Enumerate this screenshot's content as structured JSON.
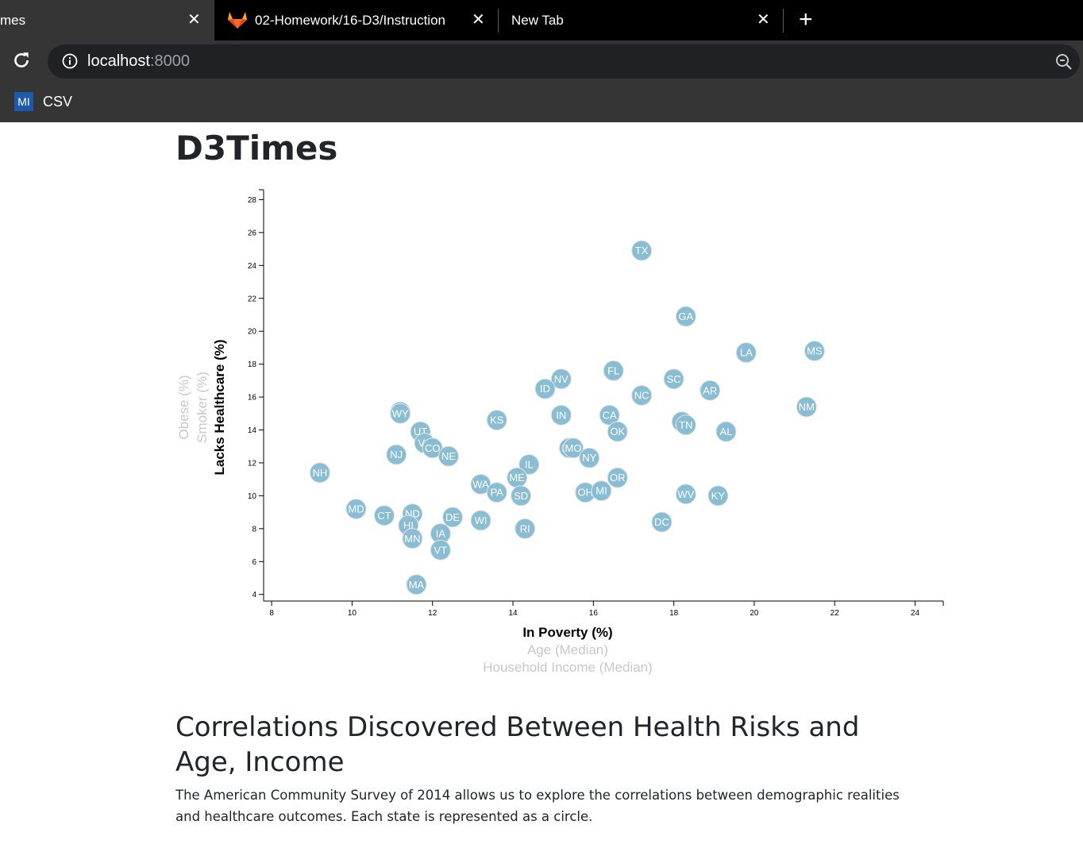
{
  "browser": {
    "tabs": [
      {
        "label": "mes",
        "active": true
      },
      {
        "label": "02-Homework/16-D3/Instruction",
        "active": false
      },
      {
        "label": "New Tab",
        "active": false
      }
    ],
    "new_tab_label": "+",
    "close_label": "✕",
    "url_host": "localhost",
    "url_port": ":8000",
    "bookmarks": [
      {
        "icon_text": "MI",
        "label": "CSV"
      }
    ]
  },
  "page": {
    "title": "D3Times",
    "heading": "Correlations Discovered Between Health Risks and Age, Income",
    "description": "The American Community Survey of 2014 allows us to explore the correlations between demographic realities and healthcare outcomes. Each state is represented as a circle."
  },
  "chart_data": {
    "type": "scatter",
    "x_labels": [
      {
        "text": "In Poverty (%)",
        "active": true
      },
      {
        "text": "Age (Median)",
        "active": false
      },
      {
        "text": "Household Income (Median)",
        "active": false
      }
    ],
    "y_labels": [
      {
        "text": "Lacks Healthcare (%)",
        "active": true
      },
      {
        "text": "Smoker (%)",
        "active": false
      },
      {
        "text": "Obese (%)",
        "active": false
      }
    ],
    "xlim": [
      7.8,
      24.7
    ],
    "ylim": [
      3.6,
      28.6
    ],
    "x_ticks": [
      8,
      10,
      12,
      14,
      16,
      18,
      20,
      22,
      24
    ],
    "y_ticks": [
      4,
      6,
      8,
      10,
      12,
      14,
      16,
      18,
      20,
      22,
      24,
      26,
      28
    ],
    "point_color": "#89bdd3",
    "points": [
      {
        "abbr": "TX",
        "x": 17.2,
        "y": 24.9
      },
      {
        "abbr": "GA",
        "x": 18.3,
        "y": 20.9
      },
      {
        "abbr": "LA",
        "x": 19.8,
        "y": 18.7
      },
      {
        "abbr": "MS",
        "x": 21.5,
        "y": 18.8
      },
      {
        "abbr": "FL",
        "x": 16.5,
        "y": 17.6
      },
      {
        "abbr": "NV",
        "x": 15.2,
        "y": 17.1
      },
      {
        "abbr": "SC",
        "x": 18.0,
        "y": 17.1
      },
      {
        "abbr": "ID",
        "x": 14.8,
        "y": 16.5
      },
      {
        "abbr": "AR",
        "x": 18.9,
        "y": 16.4
      },
      {
        "abbr": "NC",
        "x": 17.2,
        "y": 16.1
      },
      {
        "abbr": "NM",
        "x": 21.3,
        "y": 15.4
      },
      {
        "abbr": "AK",
        "x": 11.2,
        "y": 15.1
      },
      {
        "abbr": "WY",
        "x": 11.2,
        "y": 15.0
      },
      {
        "abbr": "IN",
        "x": 15.2,
        "y": 14.9
      },
      {
        "abbr": "CA",
        "x": 16.4,
        "y": 14.9
      },
      {
        "abbr": "KS",
        "x": 13.6,
        "y": 14.6
      },
      {
        "abbr": "AZ",
        "x": 18.2,
        "y": 14.5
      },
      {
        "abbr": "TN",
        "x": 18.3,
        "y": 14.3
      },
      {
        "abbr": "OK",
        "x": 16.6,
        "y": 13.9
      },
      {
        "abbr": "AL",
        "x": 19.3,
        "y": 13.9
      },
      {
        "abbr": "UT",
        "x": 11.7,
        "y": 13.9
      },
      {
        "abbr": "VA",
        "x": 11.8,
        "y": 13.2
      },
      {
        "abbr": "MT",
        "x": 15.4,
        "y": 12.9
      },
      {
        "abbr": "MO",
        "x": 15.5,
        "y": 12.9
      },
      {
        "abbr": "CO",
        "x": 12.0,
        "y": 12.9
      },
      {
        "abbr": "NJ",
        "x": 11.1,
        "y": 12.5
      },
      {
        "abbr": "NE",
        "x": 12.4,
        "y": 12.4
      },
      {
        "abbr": "NY",
        "x": 15.9,
        "y": 12.3
      },
      {
        "abbr": "IL",
        "x": 14.4,
        "y": 11.9
      },
      {
        "abbr": "NH",
        "x": 9.2,
        "y": 11.4
      },
      {
        "abbr": "ME",
        "x": 14.1,
        "y": 11.1
      },
      {
        "abbr": "OR",
        "x": 16.6,
        "y": 11.1
      },
      {
        "abbr": "WA",
        "x": 13.2,
        "y": 10.7
      },
      {
        "abbr": "PA",
        "x": 13.6,
        "y": 10.2
      },
      {
        "abbr": "SD",
        "x": 14.2,
        "y": 10.0
      },
      {
        "abbr": "OH",
        "x": 15.8,
        "y": 10.2
      },
      {
        "abbr": "MI",
        "x": 16.2,
        "y": 10.3
      },
      {
        "abbr": "WV",
        "x": 18.3,
        "y": 10.1
      },
      {
        "abbr": "KY",
        "x": 19.1,
        "y": 10.0
      },
      {
        "abbr": "MD",
        "x": 10.1,
        "y": 9.2
      },
      {
        "abbr": "CT",
        "x": 10.8,
        "y": 8.8
      },
      {
        "abbr": "ND",
        "x": 11.5,
        "y": 8.9
      },
      {
        "abbr": "DE",
        "x": 12.5,
        "y": 8.7
      },
      {
        "abbr": "WI",
        "x": 13.2,
        "y": 8.5
      },
      {
        "abbr": "HI",
        "x": 11.4,
        "y": 8.2
      },
      {
        "abbr": "RI",
        "x": 14.3,
        "y": 8.0
      },
      {
        "abbr": "DC",
        "x": 17.7,
        "y": 8.4
      },
      {
        "abbr": "IA",
        "x": 12.2,
        "y": 7.7
      },
      {
        "abbr": "MN",
        "x": 11.5,
        "y": 7.4
      },
      {
        "abbr": "VT",
        "x": 12.2,
        "y": 6.7
      },
      {
        "abbr": "MA",
        "x": 11.6,
        "y": 4.6
      }
    ]
  }
}
